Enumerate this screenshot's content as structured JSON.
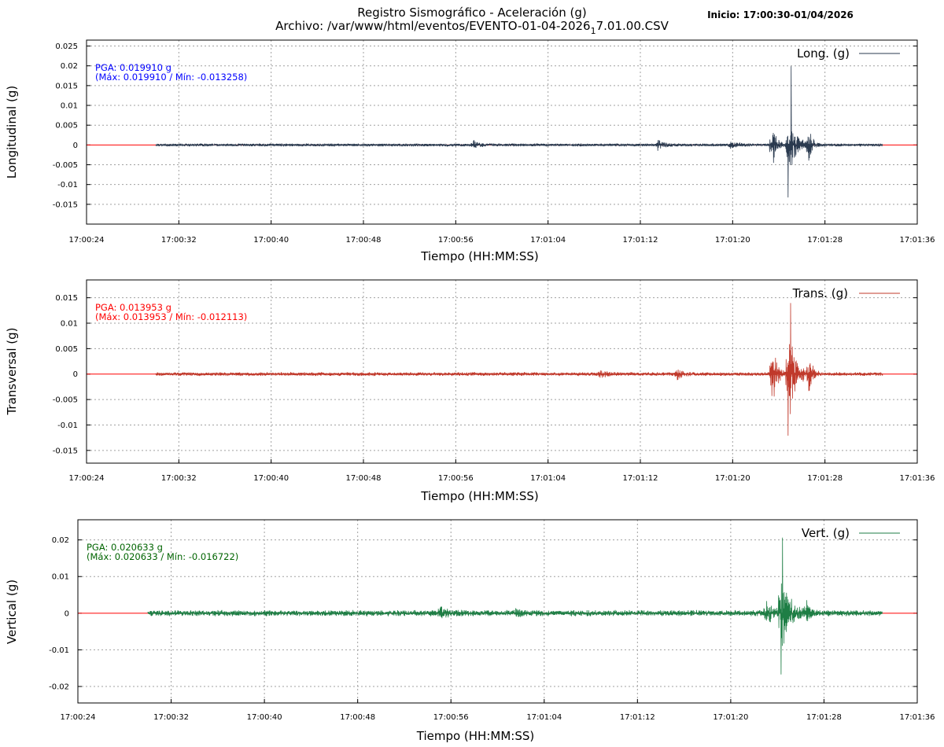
{
  "header": {
    "title": "Registro Sismográfico - Aceleración (g)",
    "file_prefix": "Archivo: /var/www/html/eventos/EVENTO-01-04-2026",
    "file_subscript": "1",
    "file_suffix": "7.01.00.CSV",
    "start_label": "Inicio: 17:00:30-01/04/2026"
  },
  "chart_data": [
    {
      "type": "line",
      "xlabel": "Tiempo (HH:MM:SS)",
      "ylabel": "Longitudinal (g)",
      "legend": {
        "label": "Long. (g)",
        "placement": "top-right"
      },
      "annotation": {
        "pga": "PGA: 0.019910 g",
        "range": "(Máx: 0.019910 / Mín: -0.013258)",
        "color": "#0000ff"
      },
      "series": [
        {
          "name": "Long. (g)",
          "color": "#2a3a4f",
          "max": 0.01991,
          "min": -0.013258,
          "noise": 0.0004,
          "bursts": [
            {
              "t": 33.5,
              "amp": 0.0012,
              "w": 0.4
            },
            {
              "t": 49.5,
              "amp": 0.0015,
              "w": 0.5
            },
            {
              "t": 55.8,
              "amp": 0.0012,
              "w": 0.5
            },
            {
              "t": 59.4,
              "amp": 0.007,
              "w": 0.35
            },
            {
              "t": 60.8,
              "amp": 0.0105,
              "w": 0.6
            },
            {
              "t": 62.6,
              "amp": 0.0045,
              "w": 0.3
            },
            {
              "t": 72.3,
              "amp": 0.0035,
              "w": 0.35
            },
            {
              "t": 73.4,
              "amp": 0.003,
              "w": 0.4
            },
            {
              "t": 74.9,
              "amp": 0.009,
              "w": 0.25
            },
            {
              "t": 77.5,
              "amp": 0.002,
              "w": 0.8
            },
            {
              "t": 81.5,
              "amp": 0.0025,
              "w": 0.5
            },
            {
              "t": 82.6,
              "amp": 0.0055,
              "w": 0.3
            },
            {
              "t": 84.0,
              "amp": 0.007,
              "w": 0.5
            }
          ]
        }
      ],
      "x_ticks": [
        "17:00:24",
        "17:00:32",
        "17:00:40",
        "17:00:48",
        "17:00:56",
        "17:01:04",
        "17:01:12",
        "17:01:20",
        "17:01:28",
        "17:01:36"
      ],
      "x_start": "17:00:24",
      "x_end": "17:01:36",
      "signal_start": "17:00:30",
      "signal_end": "17:01:33",
      "y_ticks": [
        0.025,
        0.02,
        0.015,
        0.01,
        0.005,
        0,
        -0.005,
        -0.01,
        -0.015
      ],
      "y_tick_labels": [
        "0.025",
        "0.02",
        "0.015",
        "0.01",
        "0.005",
        "0",
        "-0.005",
        "-0.01",
        "-0.015"
      ],
      "ylim": [
        -0.02,
        0.0265
      ],
      "grid": true,
      "zero_line_color": "#ff0000"
    },
    {
      "type": "line",
      "xlabel": "Tiempo (HH:MM:SS)",
      "ylabel": "Transversal (g)",
      "legend": {
        "label": "Trans. (g)",
        "placement": "top-right"
      },
      "annotation": {
        "pga": "PGA: 0.013953 g",
        "range": "(Máx: 0.013953 / Mín: -0.012113)",
        "color": "#ff0000"
      },
      "series": [
        {
          "name": "Trans. (g)",
          "color": "#c0392b",
          "max": 0.013953,
          "min": -0.012113,
          "noise": 0.0004,
          "bursts": [
            {
              "t": 44.5,
              "amp": 0.001,
              "w": 0.4
            },
            {
              "t": 51.2,
              "amp": 0.0012,
              "w": 0.4
            },
            {
              "t": 59.4,
              "amp": 0.008,
              "w": 0.35
            },
            {
              "t": 60.8,
              "amp": 0.0115,
              "w": 0.6
            },
            {
              "t": 62.6,
              "amp": 0.004,
              "w": 0.3
            },
            {
              "t": 72.4,
              "amp": 0.0045,
              "w": 0.35
            },
            {
              "t": 74.8,
              "amp": 0.004,
              "w": 0.3
            },
            {
              "t": 75.7,
              "amp": 0.0015,
              "w": 1.4
            },
            {
              "t": 81.2,
              "amp": 0.0022,
              "w": 1.6
            },
            {
              "t": 83.4,
              "amp": 0.006,
              "w": 0.35
            },
            {
              "t": 84.0,
              "amp": 0.008,
              "w": 0.25
            }
          ]
        }
      ],
      "x_ticks": [
        "17:00:24",
        "17:00:32",
        "17:00:40",
        "17:00:48",
        "17:00:56",
        "17:01:04",
        "17:01:12",
        "17:01:20",
        "17:01:28",
        "17:01:36"
      ],
      "x_start": "17:00:24",
      "x_end": "17:01:36",
      "signal_start": "17:00:30",
      "signal_end": "17:01:33",
      "y_ticks": [
        0.015,
        0.01,
        0.005,
        0,
        -0.005,
        -0.01,
        -0.015
      ],
      "y_tick_labels": [
        "0.015",
        "0.01",
        "0.005",
        "0",
        "-0.005",
        "-0.01",
        "-0.015"
      ],
      "ylim": [
        -0.0175,
        0.0185
      ],
      "grid": true,
      "zero_line_color": "#ff0000"
    },
    {
      "type": "line",
      "xlabel": "Tiempo (HH:MM:SS)",
      "ylabel": "Vertical (g)",
      "legend": {
        "label": "Vert. (g)",
        "placement": "top-right"
      },
      "annotation": {
        "pga": "PGA: 0.020633 g",
        "range": "(Máx: 0.020633 / Mín: -0.016722)",
        "color": "#006400"
      },
      "series": [
        {
          "name": "Vert. (g)",
          "color": "#1e7e45",
          "max": 0.020633,
          "min": -0.016722,
          "noise": 0.0009,
          "bursts": [
            {
              "t": 31.0,
              "amp": 0.0015,
              "w": 0.6
            },
            {
              "t": 37.5,
              "amp": 0.0012,
              "w": 0.6
            },
            {
              "t": 59.0,
              "amp": 0.004,
              "w": 0.5
            },
            {
              "t": 60.3,
              "amp": 0.016,
              "w": 0.6
            },
            {
              "t": 62.5,
              "amp": 0.004,
              "w": 0.3
            },
            {
              "t": 72.3,
              "amp": 0.0045,
              "w": 0.4
            },
            {
              "t": 73.5,
              "amp": 0.008,
              "w": 0.3
            },
            {
              "t": 76.5,
              "amp": 0.0018,
              "w": 1.0
            },
            {
              "t": 80.6,
              "amp": 0.0035,
              "w": 0.8
            },
            {
              "t": 82.5,
              "amp": 0.009,
              "w": 0.35
            },
            {
              "t": 84.0,
              "amp": 0.014,
              "w": 0.4
            }
          ]
        }
      ],
      "x_ticks": [
        "17:00:24",
        "17:00:32",
        "17:00:40",
        "17:00:48",
        "17:00:56",
        "17:01:04",
        "17:01:12",
        "17:01:20",
        "17:01:28",
        "17:01:36"
      ],
      "x_start": "17:00:24",
      "x_end": "17:01:36",
      "signal_start": "17:00:30",
      "signal_end": "17:01:33",
      "y_ticks": [
        0.02,
        0.01,
        0,
        -0.01,
        -0.02
      ],
      "y_tick_labels": [
        "0.02",
        "0.01",
        "0",
        "-0.01",
        "-0.02"
      ],
      "ylim": [
        -0.0245,
        0.0255
      ],
      "grid": true,
      "zero_line_color": "#ff0000"
    }
  ]
}
